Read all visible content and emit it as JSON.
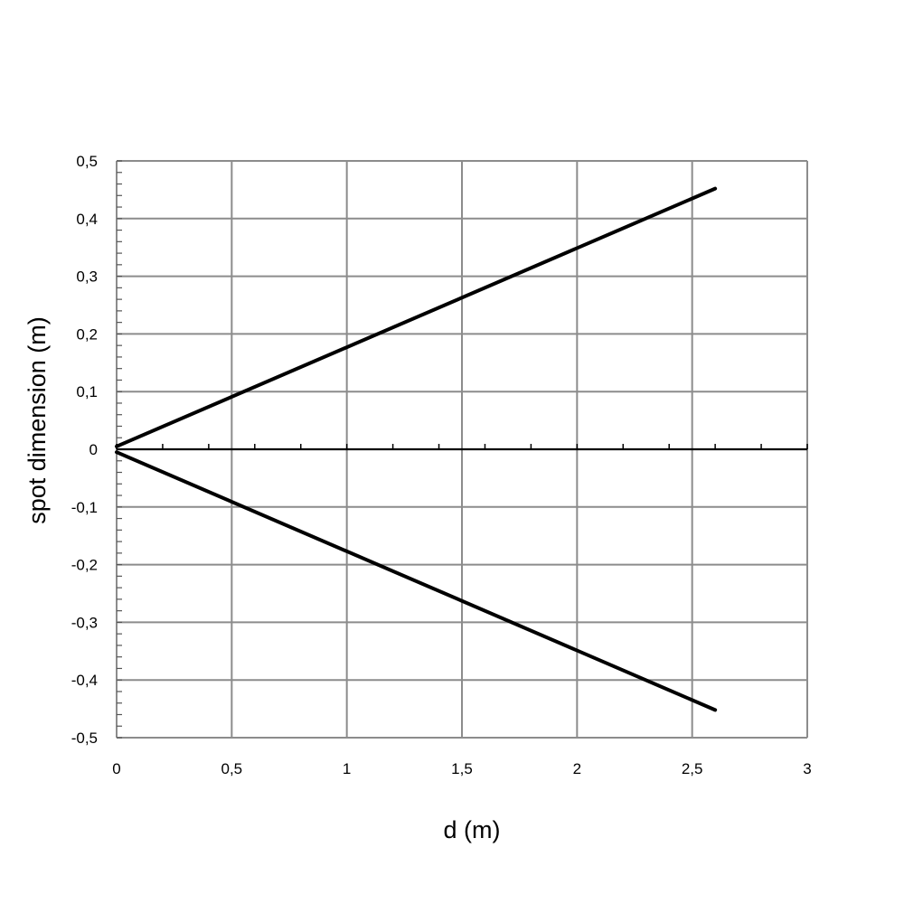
{
  "chart_data": {
    "type": "line",
    "title": "",
    "xlabel": "d (m)",
    "ylabel": "spot dimension (m)",
    "xlim": [
      0,
      3
    ],
    "ylim": [
      -0.5,
      0.5
    ],
    "x_ticks": [
      0,
      0.5,
      1,
      1.5,
      2,
      2.5,
      3
    ],
    "x_tick_labels": [
      "0",
      "0,5",
      "1",
      "1,5",
      "2",
      "2,5",
      "3"
    ],
    "y_ticks": [
      0.5,
      0.4,
      0.3,
      0.2,
      0.1,
      0,
      -0.1,
      -0.2,
      -0.3,
      -0.4,
      -0.5
    ],
    "y_tick_labels": [
      "0,5",
      "0,4",
      "0,3",
      "0,2",
      "0,1",
      "0",
      "-0,1",
      "-0,2",
      "-0,3",
      "-0,4",
      "-0,5"
    ],
    "grid": true,
    "legend": "none",
    "series": [
      {
        "x": [
          0,
          2.6
        ],
        "y": [
          0.005,
          0.452
        ],
        "color": "#000000"
      },
      {
        "x": [
          0,
          2.6
        ],
        "y": [
          -0.005,
          -0.452
        ],
        "color": "#000000"
      }
    ],
    "colors": {
      "grid": "#8c8c8c",
      "axis": "#000000"
    }
  }
}
